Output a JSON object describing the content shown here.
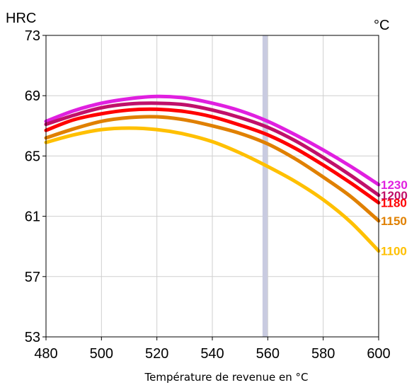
{
  "chart_data": {
    "type": "line",
    "ylabel": "HRC",
    "unit_label": "°C",
    "xlabel": "Température de revenue en °C",
    "xlim": [
      480,
      600
    ],
    "ylim": [
      53,
      73
    ],
    "xticks": [
      480,
      500,
      520,
      540,
      560,
      580,
      600
    ],
    "yticks": [
      53,
      57,
      61,
      65,
      69,
      73
    ],
    "grid": true,
    "marker_x": 559,
    "marker_color": "#c9cbe0",
    "series": [
      {
        "name": "1230",
        "color": "#e020e0",
        "x": [
          480,
          490,
          500,
          510,
          520,
          530,
          540,
          550,
          560,
          570,
          580,
          590,
          600
        ],
        "y": [
          67.3,
          68.0,
          68.5,
          68.8,
          68.95,
          68.85,
          68.5,
          68.0,
          67.3,
          66.4,
          65.4,
          64.3,
          63.1
        ]
      },
      {
        "name": "1200",
        "color": "#c0106a",
        "x": [
          480,
          490,
          500,
          510,
          520,
          530,
          540,
          550,
          560,
          570,
          580,
          590,
          600
        ],
        "y": [
          67.1,
          67.7,
          68.2,
          68.45,
          68.5,
          68.4,
          68.05,
          67.55,
          66.9,
          66.0,
          64.9,
          63.7,
          62.4
        ]
      },
      {
        "name": "1180",
        "color": "#ff0000",
        "x": [
          480,
          490,
          500,
          510,
          520,
          530,
          540,
          550,
          560,
          570,
          580,
          590,
          600
        ],
        "y": [
          66.7,
          67.4,
          67.8,
          68.05,
          68.1,
          67.95,
          67.6,
          67.05,
          66.4,
          65.5,
          64.4,
          63.2,
          61.9
        ]
      },
      {
        "name": "1150",
        "color": "#e08000",
        "x": [
          480,
          490,
          500,
          510,
          520,
          530,
          540,
          550,
          560,
          570,
          580,
          590,
          600
        ],
        "y": [
          66.2,
          66.8,
          67.3,
          67.55,
          67.6,
          67.4,
          67.0,
          66.5,
          65.8,
          64.8,
          63.6,
          62.3,
          60.7
        ]
      },
      {
        "name": "1100",
        "color": "#ffc000",
        "x": [
          480,
          490,
          500,
          510,
          520,
          530,
          540,
          550,
          560,
          570,
          580,
          590,
          600
        ],
        "y": [
          65.9,
          66.4,
          66.75,
          66.85,
          66.75,
          66.45,
          65.95,
          65.2,
          64.3,
          63.3,
          62.1,
          60.6,
          58.7
        ]
      }
    ]
  }
}
